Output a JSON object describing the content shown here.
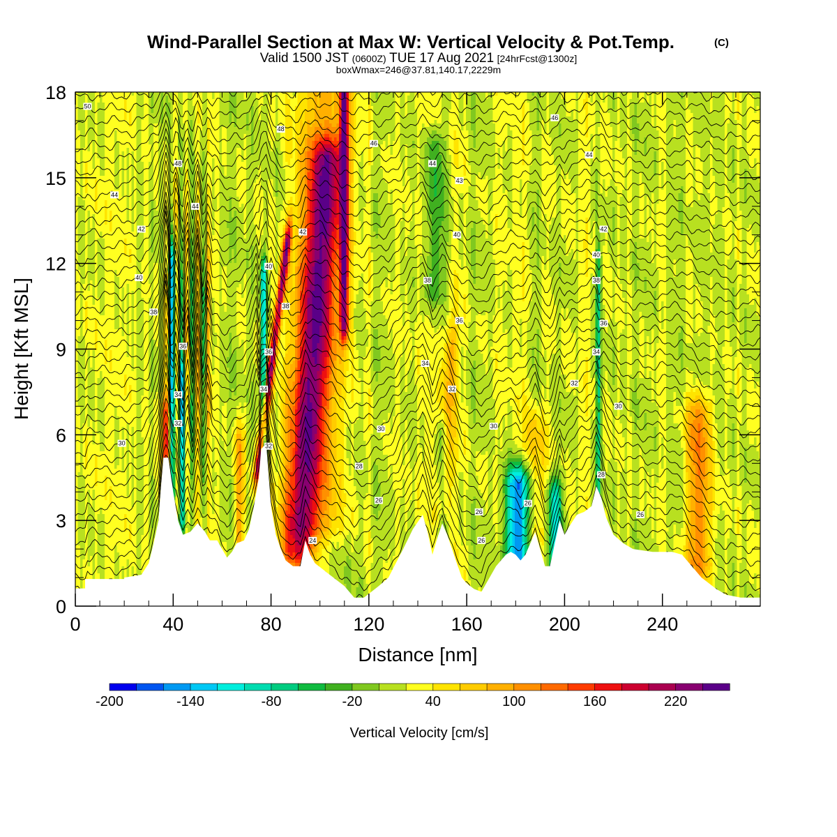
{
  "chart_data": {
    "type": "heatmap",
    "title": "Wind-Parallel Section at Max W: Vertical Velocity & Pot.Temp.",
    "title_mark": "(C)",
    "subtitle": {
      "valid": "Valid 1500 JST",
      "utc": "(0600Z)",
      "date": "TUE 17 Aug 2021",
      "forecast": "[24hrFcst@1300z]"
    },
    "subtitle2": "boxWmax=246@37.81,140.17,2229m",
    "xlabel": "Distance [nm]",
    "ylabel": "Height [Kft MSL]",
    "xlim": [
      0,
      280
    ],
    "ylim": [
      0,
      18
    ],
    "xticks": [
      "0",
      "40",
      "80",
      "120",
      "160",
      "200",
      "240"
    ],
    "xtick_values": [
      0,
      40,
      80,
      120,
      160,
      200,
      240
    ],
    "yticks": [
      "0",
      "3",
      "6",
      "9",
      "12",
      "15",
      "18"
    ],
    "ytick_values": [
      0,
      3,
      6,
      9,
      12,
      15,
      18
    ],
    "colorbar": {
      "title": "Vertical Velocity [cm/s]",
      "labels": [
        "-200",
        "-140",
        "-80",
        "-20",
        "40",
        "100",
        "160",
        "220"
      ],
      "label_values": [
        -200,
        -140,
        -80,
        -20,
        40,
        100,
        160,
        220
      ],
      "min": -200,
      "max": 260,
      "step": 20,
      "colors": [
        "#0000ee",
        "#0055f0",
        "#0099f2",
        "#00c8f5",
        "#00eedd",
        "#00dcb0",
        "#00cc80",
        "#10bb40",
        "#40b020",
        "#80c820",
        "#b8e020",
        "#ffff20",
        "#ffe400",
        "#ffcc00",
        "#ffb000",
        "#ff9000",
        "#ff6a00",
        "#ff3c00",
        "#ee1010",
        "#cc0030",
        "#aa0050",
        "#880070",
        "#5a0088"
      ]
    },
    "terrain": [
      [
        0,
        0.62
      ],
      [
        4,
        0.62
      ],
      [
        4,
        0.95
      ],
      [
        20,
        0.95
      ],
      [
        20,
        1.0
      ],
      [
        27,
        1.1
      ],
      [
        30,
        1.5
      ],
      [
        32,
        2.2
      ],
      [
        34,
        3.0
      ],
      [
        35,
        4.2
      ],
      [
        36,
        5.2
      ],
      [
        38,
        5.2
      ],
      [
        40,
        4.0
      ],
      [
        42,
        3.0
      ],
      [
        44,
        2.5
      ],
      [
        47,
        2.6
      ],
      [
        50,
        2.9
      ],
      [
        53,
        2.6
      ],
      [
        55,
        2.3
      ],
      [
        58,
        2.3
      ],
      [
        60,
        2.0
      ],
      [
        62,
        1.7
      ],
      [
        64,
        1.9
      ],
      [
        66,
        2.2
      ],
      [
        69,
        2.3
      ],
      [
        71,
        2.7
      ],
      [
        73,
        3.5
      ],
      [
        75,
        4.5
      ],
      [
        76,
        5.5
      ],
      [
        78,
        5.7
      ],
      [
        80,
        3.5
      ],
      [
        82,
        2.5
      ],
      [
        84,
        2.0
      ],
      [
        86,
        1.6
      ],
      [
        89,
        1.4
      ],
      [
        92,
        1.4
      ],
      [
        94,
        2.3
      ],
      [
        96,
        1.8
      ],
      [
        98,
        1.5
      ],
      [
        101,
        1.3
      ],
      [
        104,
        1.1
      ],
      [
        107,
        0.9
      ],
      [
        110,
        0.7
      ],
      [
        112,
        0.5
      ],
      [
        114,
        0.3
      ],
      [
        118,
        0.3
      ],
      [
        121,
        0.5
      ],
      [
        124,
        0.7
      ],
      [
        128,
        1.0
      ],
      [
        131,
        1.5
      ],
      [
        134,
        2.0
      ],
      [
        138,
        2.7
      ],
      [
        142,
        3.2
      ],
      [
        144,
        2.6
      ],
      [
        146,
        1.8
      ],
      [
        148,
        2.4
      ],
      [
        150,
        2.9
      ],
      [
        152,
        2.5
      ],
      [
        154,
        2.0
      ],
      [
        156,
        1.5
      ],
      [
        158,
        1.0
      ],
      [
        160,
        0.8
      ],
      [
        163,
        0.6
      ],
      [
        166,
        0.5
      ],
      [
        168,
        0.8
      ],
      [
        170,
        1.1
      ],
      [
        172,
        1.4
      ],
      [
        174,
        1.6
      ],
      [
        176,
        1.8
      ],
      [
        178,
        1.9
      ],
      [
        180,
        1.8
      ],
      [
        182,
        1.6
      ],
      [
        184,
        1.8
      ],
      [
        186,
        2.2
      ],
      [
        188,
        2.6
      ],
      [
        190,
        2.0
      ],
      [
        192,
        1.4
      ],
      [
        194,
        1.4
      ],
      [
        196,
        2.2
      ],
      [
        198,
        3.0
      ],
      [
        200,
        2.5
      ],
      [
        202,
        2.8
      ],
      [
        205,
        3.2
      ],
      [
        208,
        3.3
      ],
      [
        211,
        3.5
      ],
      [
        213,
        4.2
      ],
      [
        215,
        3.8
      ],
      [
        217,
        3.1
      ],
      [
        220,
        2.5
      ],
      [
        224,
        2.2
      ],
      [
        228,
        2.0
      ],
      [
        236,
        1.9
      ],
      [
        244,
        1.9
      ],
      [
        248,
        1.8
      ],
      [
        252,
        1.4
      ],
      [
        256,
        1.0
      ],
      [
        262,
        0.6
      ],
      [
        266,
        0.4
      ],
      [
        272,
        0.3
      ],
      [
        280,
        0.3
      ]
    ],
    "updrafts": [
      {
        "x": 94,
        "y": 5.5,
        "w": 160,
        "z0": 2.0,
        "z1": 15.5,
        "sx": 7,
        "tilt": 0.9
      },
      {
        "x": 78,
        "y": 7.0,
        "w": 200,
        "z0": 5.0,
        "z1": 12.5,
        "sx": 1.6,
        "tilt": 1.5
      },
      {
        "x": 110,
        "y": 13.0,
        "w": 200,
        "z0": 10.0,
        "z1": 18.0,
        "sx": 1.8,
        "tilt": 0
      },
      {
        "x": 100,
        "y": 10.0,
        "w": 70,
        "z0": 3.0,
        "z1": 18.0,
        "sx": 12,
        "tilt": 0.3
      },
      {
        "x": 37,
        "y": 5.0,
        "w": 120,
        "z0": 4.0,
        "z1": 6.5,
        "sx": 2,
        "tilt": 0
      },
      {
        "x": 67,
        "y": 4.0,
        "w": 80,
        "z0": 2.5,
        "z1": 5.5,
        "sx": 2,
        "tilt": 0
      },
      {
        "x": 152,
        "y": 6.5,
        "w": 70,
        "z0": 3.5,
        "z1": 9.0,
        "sx": 3,
        "tilt": 0.5
      },
      {
        "x": 188,
        "y": 4.0,
        "w": 60,
        "z0": 2.5,
        "z1": 6.0,
        "sx": 4,
        "tilt": 0
      },
      {
        "x": 255,
        "y": 3.5,
        "w": 100,
        "z0": 1.5,
        "z1": 6.5,
        "sx": 5,
        "tilt": 0
      }
    ],
    "downdrafts": [
      {
        "x": 181,
        "y": 2.6,
        "w": -190,
        "z0": 1.5,
        "z1": 4.2,
        "sx": 5
      },
      {
        "x": 196,
        "y": 2.8,
        "w": -120,
        "z0": 1.5,
        "z1": 3.8,
        "sx": 3
      },
      {
        "x": 40,
        "y": 7.0,
        "w": -110,
        "z0": 4.0,
        "z1": 12.0,
        "sx": 1.4
      },
      {
        "x": 44,
        "y": 6.0,
        "w": -100,
        "z0": 3.0,
        "z1": 8.0,
        "sx": 1.4
      },
      {
        "x": 77,
        "y": 8.5,
        "w": -130,
        "z0": 5.5,
        "z1": 11.5,
        "sx": 1.2
      },
      {
        "x": 147,
        "y": 13.5,
        "w": -60,
        "z0": 11.0,
        "z1": 16.0,
        "sx": 4
      },
      {
        "x": 150,
        "y": 4.5,
        "w": -70,
        "z0": 2.5,
        "z1": 6.0,
        "sx": 2
      },
      {
        "x": 214,
        "y": 9.5,
        "w": -80,
        "z0": 4.0,
        "z1": 12.0,
        "sx": 1.2
      }
    ],
    "contour_labels": [
      {
        "text": "50",
        "x": 5,
        "y": 17.5
      },
      {
        "text": "48",
        "x": 84,
        "y": 16.7
      },
      {
        "text": "48",
        "x": 42,
        "y": 15.5
      },
      {
        "text": "46",
        "x": 122,
        "y": 16.2
      },
      {
        "text": "46",
        "x": 196,
        "y": 17.1
      },
      {
        "text": "44",
        "x": 16,
        "y": 14.4
      },
      {
        "text": "44",
        "x": 49,
        "y": 14.0
      },
      {
        "text": "44",
        "x": 146,
        "y": 15.5
      },
      {
        "text": "44",
        "x": 210,
        "y": 15.8
      },
      {
        "text": "43",
        "x": 157,
        "y": 14.9
      },
      {
        "text": "42",
        "x": 27,
        "y": 13.2
      },
      {
        "text": "42",
        "x": 93,
        "y": 13.1
      },
      {
        "text": "42",
        "x": 216,
        "y": 13.2
      },
      {
        "text": "40",
        "x": 26,
        "y": 11.5
      },
      {
        "text": "40",
        "x": 79,
        "y": 11.9
      },
      {
        "text": "40",
        "x": 213,
        "y": 12.3
      },
      {
        "text": "40",
        "x": 156,
        "y": 13.0
      },
      {
        "text": "38",
        "x": 32,
        "y": 10.3
      },
      {
        "text": "38",
        "x": 86,
        "y": 10.5
      },
      {
        "text": "38",
        "x": 144,
        "y": 11.4
      },
      {
        "text": "38",
        "x": 213,
        "y": 11.4
      },
      {
        "text": "36",
        "x": 44,
        "y": 9.1
      },
      {
        "text": "36",
        "x": 79,
        "y": 8.9
      },
      {
        "text": "36",
        "x": 157,
        "y": 10.0
      },
      {
        "text": "36",
        "x": 216,
        "y": 9.9
      },
      {
        "text": "34",
        "x": 42,
        "y": 7.4
      },
      {
        "text": "34",
        "x": 77,
        "y": 7.6
      },
      {
        "text": "34",
        "x": 143,
        "y": 8.5
      },
      {
        "text": "34",
        "x": 213,
        "y": 8.9
      },
      {
        "text": "32",
        "x": 42,
        "y": 6.4
      },
      {
        "text": "32",
        "x": 79,
        "y": 5.6
      },
      {
        "text": "32",
        "x": 154,
        "y": 7.6
      },
      {
        "text": "32",
        "x": 204,
        "y": 7.8
      },
      {
        "text": "30",
        "x": 19,
        "y": 5.7
      },
      {
        "text": "30",
        "x": 125,
        "y": 6.2
      },
      {
        "text": "30",
        "x": 171,
        "y": 6.3
      },
      {
        "text": "30",
        "x": 222,
        "y": 7.0
      },
      {
        "text": "28",
        "x": 116,
        "y": 4.9
      },
      {
        "text": "28",
        "x": 215,
        "y": 4.6
      },
      {
        "text": "26",
        "x": 124,
        "y": 3.7
      },
      {
        "text": "26",
        "x": 185,
        "y": 3.6
      },
      {
        "text": "26",
        "x": 231,
        "y": 3.2
      },
      {
        "text": "26",
        "x": 165,
        "y": 3.3
      },
      {
        "text": "26",
        "x": 166,
        "y": 2.3
      },
      {
        "text": "24",
        "x": 97,
        "y": 2.3
      }
    ]
  }
}
